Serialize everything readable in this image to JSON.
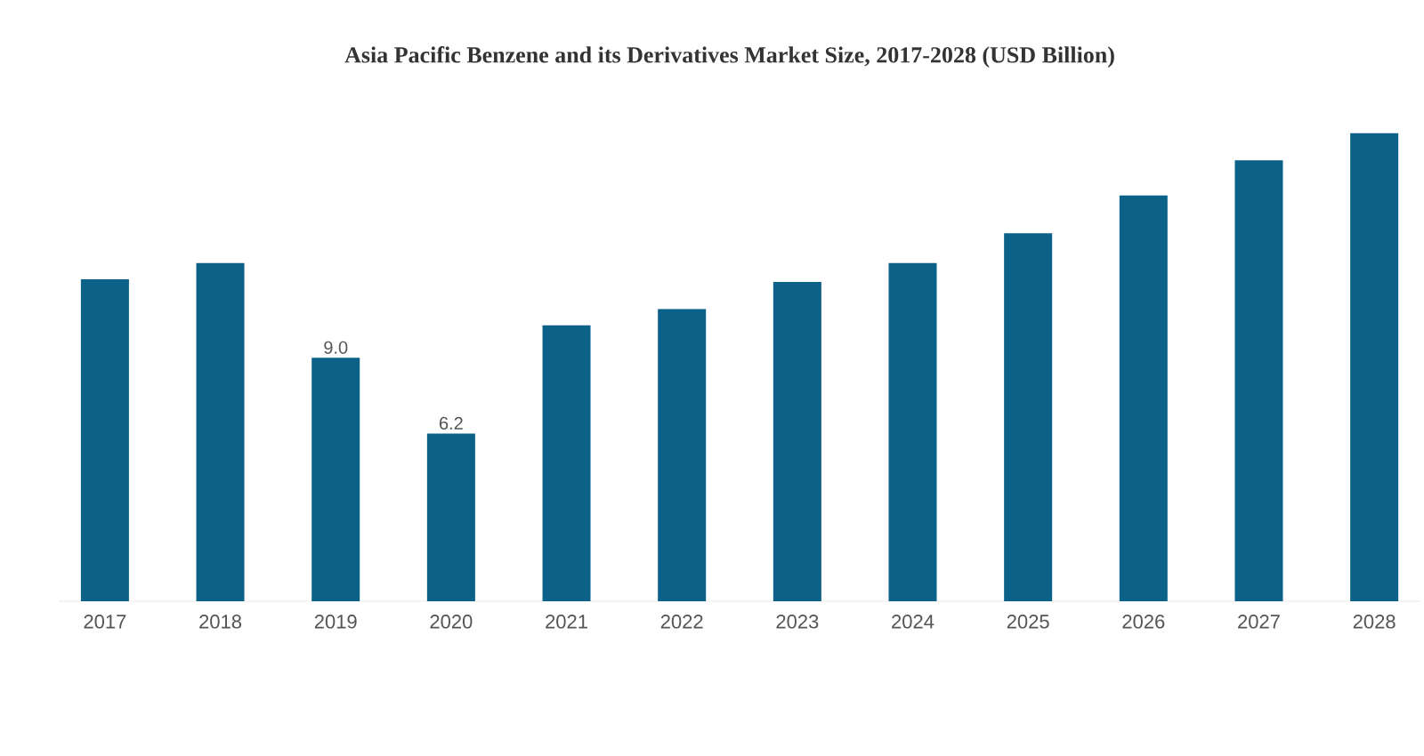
{
  "chart_data": {
    "type": "bar",
    "title": "Asia Pacific Benzene and its Derivatives Market Size, 2017-2028 (USD Billion)",
    "categories": [
      "2017",
      "2018",
      "2019",
      "2020",
      "2021",
      "2022",
      "2023",
      "2024",
      "2025",
      "2026",
      "2027",
      "2028"
    ],
    "values": [
      11.9,
      12.5,
      9.0,
      6.2,
      10.2,
      10.8,
      11.8,
      12.5,
      13.6,
      15.0,
      16.3,
      17.3
    ],
    "value_labels": [
      null,
      null,
      "9.0",
      "6.2",
      null,
      null,
      null,
      null,
      null,
      null,
      null,
      null
    ],
    "color": "#0b6187"
  }
}
